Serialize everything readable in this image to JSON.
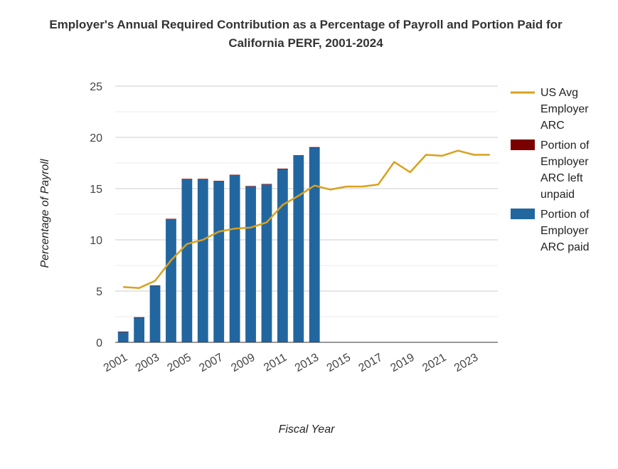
{
  "chart_data": {
    "type": "bar",
    "title": "Employer's Annual Required Contribution as a Percentage of Payroll and Portion Paid for California PERF, 2001-2024",
    "xlabel": "Fiscal Year",
    "ylabel": "Percentage of Payroll",
    "ylim": [
      0,
      25
    ],
    "yticks": [
      0,
      5,
      10,
      15,
      20,
      25
    ],
    "x": [
      2001,
      2002,
      2003,
      2004,
      2005,
      2006,
      2007,
      2008,
      2009,
      2010,
      2011,
      2012,
      2013,
      2014,
      2015,
      2016,
      2017,
      2018,
      2019,
      2020,
      2021,
      2022,
      2023,
      2024
    ],
    "xtick_labels": [
      "2001",
      "2003",
      "2005",
      "2007",
      "2009",
      "2011",
      "2013",
      "2015",
      "2017",
      "2019",
      "2021",
      "2023"
    ],
    "stacked": true,
    "series": [
      {
        "name": "Portion of Employer ARC paid",
        "kind": "bar",
        "color": "#2266a0",
        "values": [
          1.0,
          2.4,
          5.5,
          12.0,
          15.9,
          15.9,
          15.7,
          16.3,
          15.2,
          15.4,
          16.9,
          18.2,
          19.0,
          null,
          null,
          null,
          null,
          null,
          null,
          null,
          null,
          null,
          null,
          null
        ]
      },
      {
        "name": "Portion of Employer ARC left unpaid",
        "kind": "bar",
        "color": "#7a0000",
        "values": [
          0.05,
          0.05,
          0.05,
          0.05,
          0.05,
          0.05,
          0.05,
          0.05,
          0.05,
          0.05,
          0.05,
          0.05,
          0.05,
          null,
          null,
          null,
          null,
          null,
          null,
          null,
          null,
          null,
          null,
          null
        ]
      },
      {
        "name": "US Avg Employer ARC",
        "kind": "line",
        "color": "#d9a11c",
        "values": [
          5.4,
          5.3,
          6.0,
          8.0,
          9.6,
          10.0,
          10.8,
          11.1,
          11.2,
          11.7,
          13.4,
          14.3,
          15.3,
          14.9,
          15.2,
          15.2,
          15.4,
          17.6,
          16.6,
          18.3,
          18.2,
          18.7,
          18.3,
          18.3
        ]
      }
    ],
    "legend": {
      "placement": "right",
      "items": [
        {
          "lines": [
            "US Avg",
            "Employer",
            "ARC"
          ],
          "color": "#d9a11c",
          "shape": "line"
        },
        {
          "lines": [
            "Portion of",
            "Employer",
            "ARC left",
            "unpaid"
          ],
          "color": "#7a0000",
          "shape": "box"
        },
        {
          "lines": [
            "Portion of",
            "Employer",
            "ARC paid"
          ],
          "color": "#2266a0",
          "shape": "box"
        }
      ]
    }
  }
}
